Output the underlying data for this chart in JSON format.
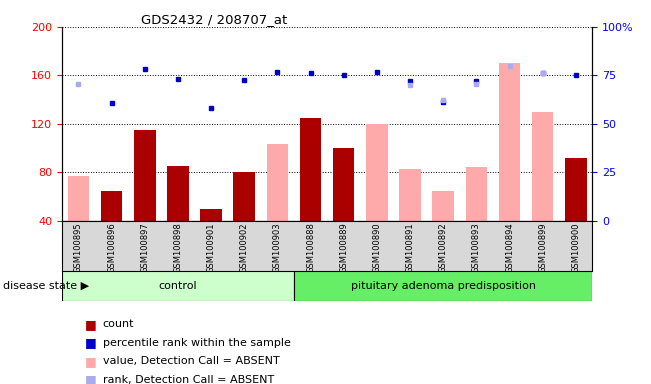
{
  "title": "GDS2432 / 208707_at",
  "samples": [
    "GSM100895",
    "GSM100896",
    "GSM100897",
    "GSM100898",
    "GSM100901",
    "GSM100902",
    "GSM100903",
    "GSM100888",
    "GSM100889",
    "GSM100890",
    "GSM100891",
    "GSM100892",
    "GSM100893",
    "GSM100894",
    "GSM100899",
    "GSM100900"
  ],
  "count": [
    null,
    65,
    115,
    85,
    50,
    80,
    null,
    125,
    100,
    null,
    null,
    null,
    null,
    null,
    null,
    92
  ],
  "value_absent": [
    77,
    null,
    null,
    null,
    null,
    null,
    103,
    null,
    null,
    120,
    83,
    65,
    84,
    170,
    130,
    null
  ],
  "percentile_rank": [
    null,
    137,
    165,
    157,
    133,
    156,
    163,
    162,
    160,
    163,
    155,
    138,
    155,
    null,
    162,
    160
  ],
  "rank_absent": [
    153,
    null,
    null,
    null,
    null,
    null,
    null,
    null,
    null,
    null,
    152,
    140,
    153,
    168,
    162,
    null
  ],
  "control_count": 7,
  "disease_count": 9,
  "ylim_left": [
    40,
    200
  ],
  "ylim_right": [
    0,
    100
  ],
  "yticks_left": [
    40,
    80,
    120,
    160,
    200
  ],
  "yticks_right": [
    0,
    25,
    50,
    75,
    100
  ],
  "bar_color_dark_red": "#aa0000",
  "bar_color_light_pink": "#ffaaaa",
  "dot_color_dark_blue": "#0000cc",
  "dot_color_light_blue": "#aaaaee",
  "control_bg": "#ccffcc",
  "disease_bg": "#66ee66",
  "group_label_control": "control",
  "group_label_disease": "pituitary adenoma predisposition",
  "disease_state_label": "disease state ▶",
  "legend_count": "count",
  "legend_percentile": "percentile rank within the sample",
  "legend_value_absent": "value, Detection Call = ABSENT",
  "legend_rank_absent": "rank, Detection Call = ABSENT"
}
